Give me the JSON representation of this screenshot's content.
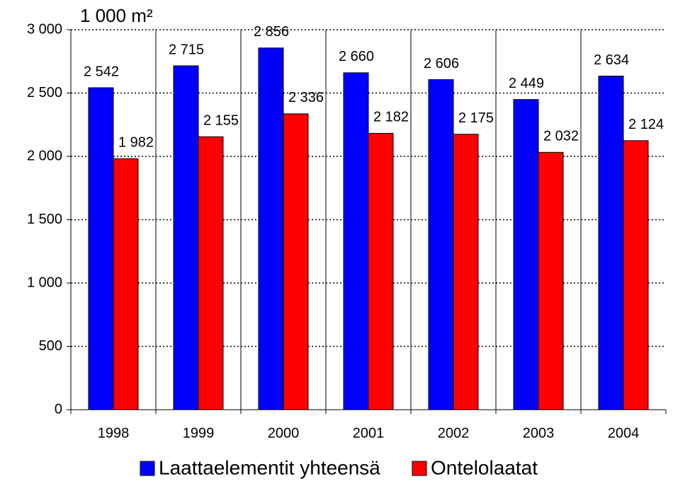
{
  "chart_data": {
    "type": "bar",
    "y_axis_label": "1 000 m²",
    "categories": [
      "1998",
      "1999",
      "2000",
      "2001",
      "2002",
      "2003",
      "2004"
    ],
    "series": [
      {
        "name": "Laattaelementit yhteensä",
        "color": "#0000ff",
        "values": [
          2542,
          2715,
          2856,
          2660,
          2606,
          2449,
          2634
        ],
        "value_labels": [
          "2 542",
          "2 715",
          "2 856",
          "2 660",
          "2 606",
          "2 449",
          "2 634"
        ]
      },
      {
        "name": "Ontelolaatat",
        "color": "#ff0000",
        "values": [
          1982,
          2155,
          2336,
          2182,
          2175,
          2032,
          2124
        ],
        "value_labels": [
          "1 982",
          "2 155",
          "2 336",
          "2 182",
          "2 175",
          "2 032",
          "2 124"
        ]
      }
    ],
    "ylim": [
      0,
      3000
    ],
    "yticks": [
      0,
      500,
      {
        "value": 1000,
        "label": "1 000"
      },
      {
        "value": 1500,
        "label": "1 500"
      },
      {
        "value": 2000,
        "label": "2 000"
      },
      {
        "value": 2500,
        "label": "2 500"
      },
      {
        "value": 3000,
        "label": "3 000"
      }
    ],
    "grid": true,
    "legend": "bottom"
  }
}
